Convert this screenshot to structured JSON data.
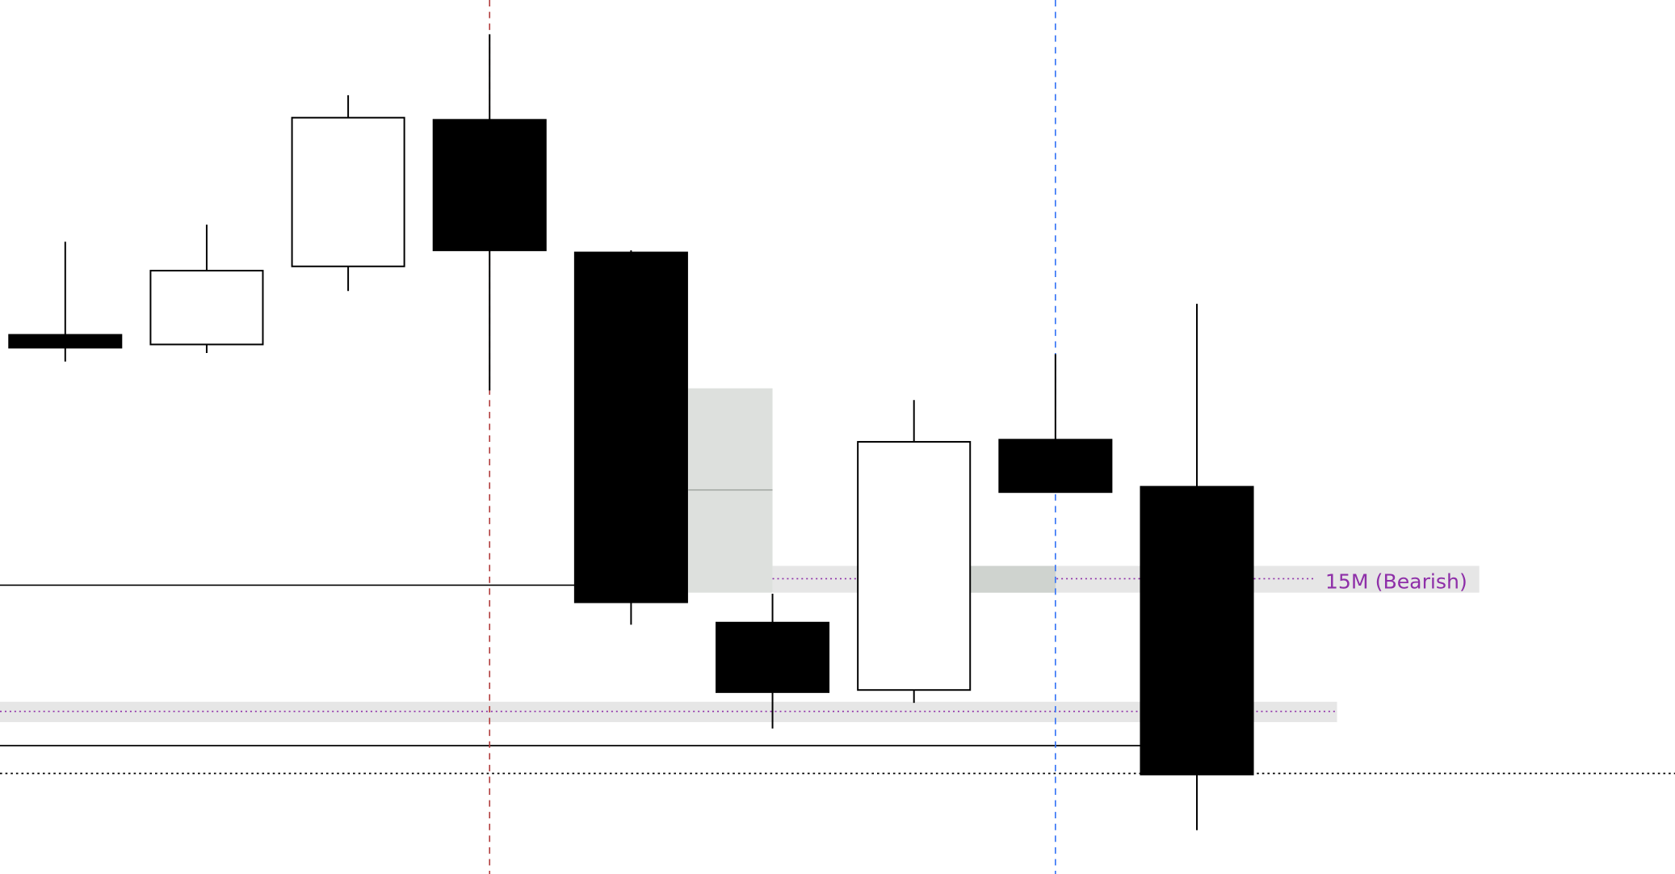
{
  "chart_data": {
    "type": "candlestick",
    "title": "",
    "xlabel": "",
    "ylabel": "",
    "ylim": [
      0,
      817
    ],
    "grid": false,
    "candles": [
      {
        "open": 504,
        "high": 591,
        "low": 479,
        "close": 492
      },
      {
        "open": 495,
        "high": 607,
        "low": 487,
        "close": 564
      },
      {
        "open": 568,
        "high": 728,
        "low": 545,
        "close": 707
      },
      {
        "open": 705,
        "high": 785,
        "low": 452,
        "close": 583
      },
      {
        "open": 581,
        "high": 583,
        "low": 233,
        "close": 254
      },
      {
        "open": 235,
        "high": 262,
        "low": 136,
        "close": 170
      },
      {
        "open": 172,
        "high": 443,
        "low": 160,
        "close": 404
      },
      {
        "open": 406,
        "high": 486,
        "low": 357,
        "close": 357
      },
      {
        "open": 362,
        "high": 533,
        "low": 41,
        "close": 93
      }
    ],
    "colors": {
      "bull_fill": "#ffffff",
      "bear_fill": "#000000",
      "outline": "#000000"
    },
    "horizontal_lines": [
      {
        "price": 270,
        "style": "solid",
        "color": "#000000",
        "end_candle": 4
      },
      {
        "price": 120,
        "style": "solid",
        "color": "#000000",
        "end_candle": 8
      },
      {
        "price": 94,
        "style": "dotted",
        "color": "#000000",
        "end_candle": null
      }
    ],
    "vertical_lines": [
      {
        "candle": 3,
        "style": "dashed",
        "color": "#b03a3a"
      },
      {
        "candle": 7,
        "style": "dashed",
        "color": "#2f6ff5"
      }
    ],
    "gap_box": {
      "top": 454,
      "bottom": 263,
      "mid": 359,
      "after_candle": 4,
      "color": "#dde0dd"
    },
    "zones": [
      {
        "label": "15M (Bearish)",
        "top": 288,
        "bottom": 263,
        "level": 276,
        "color": "#8e2fa8",
        "band": "#e6e6e6",
        "start_candle": 5
      },
      {
        "label": "",
        "top": 161,
        "bottom": 142,
        "level": 152,
        "color": "#8e2fa8",
        "band": "#e6e6e6",
        "start_candle": 0
      }
    ]
  }
}
